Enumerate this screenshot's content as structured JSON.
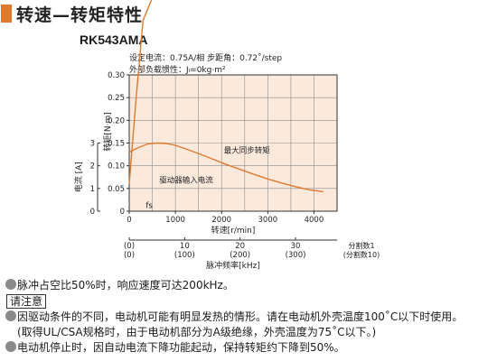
{
  "page": {
    "title": "转速—转矩特性",
    "model": "RK543AMA",
    "conditions": [
      "设定电流：0.75A/相  步距角：0.72˚/step",
      "外部负载惯性：Jₗ=0kg·m²"
    ],
    "colors": {
      "accent": "#e07a2e",
      "curve": "#e07a2e",
      "plot_bg": "#fbe9dc",
      "grid": "#8c8c8c"
    }
  },
  "chart_data": {
    "type": "line",
    "x": {
      "label": "转速[r/min]",
      "ticks": [
        0,
        1000,
        2000,
        3000,
        4000
      ],
      "range": [
        0,
        4500
      ]
    },
    "y_torque": {
      "label": "转矩[N·m]",
      "ticks": [
        "0",
        "0.05",
        "0.10",
        "0.15",
        "0.20",
        "0.25",
        "0.30"
      ],
      "range": [
        0,
        0.3
      ]
    },
    "y_current": {
      "label": "电流 [A]",
      "ticks": [
        "0",
        "1",
        "2",
        "3"
      ],
      "range": [
        0,
        3
      ]
    },
    "x2": {
      "label": "脉冲频率[kHz]",
      "ticks": [
        {
          "top": "(0)",
          "bottom": "(0)",
          "speed": 0
        },
        {
          "top": "10",
          "bottom": "(100)",
          "speed": 1200
        },
        {
          "top": "20",
          "bottom": "(200)",
          "speed": 2400
        },
        {
          "top": "30",
          "bottom": "(300)",
          "speed": 3600
        }
      ],
      "division_top": "分割数1",
      "division_bottom": "(分割数10)"
    },
    "series": [
      {
        "name": "最大同步转矩",
        "points": [
          [
            0,
            0.13
          ],
          [
            200,
            0.14
          ],
          [
            400,
            0.148
          ],
          [
            600,
            0.15
          ],
          [
            800,
            0.149
          ],
          [
            1000,
            0.145
          ],
          [
            1200,
            0.138
          ],
          [
            1500,
            0.127
          ],
          [
            1800,
            0.115
          ],
          [
            2100,
            0.103
          ],
          [
            2400,
            0.092
          ],
          [
            2700,
            0.081
          ],
          [
            3000,
            0.071
          ],
          [
            3300,
            0.062
          ],
          [
            3600,
            0.054
          ],
          [
            3900,
            0.047
          ],
          [
            4200,
            0.043
          ]
        ]
      },
      {
        "name": "驱动器输入电流",
        "axis": "current",
        "points": [
          [
            0,
            0.06
          ],
          [
            150,
            0.25
          ],
          [
            300,
            0.42
          ],
          [
            500,
            0.47
          ],
          [
            700,
            0.49
          ],
          [
            1000,
            0.5
          ],
          [
            1500,
            0.5
          ],
          [
            2000,
            0.5
          ],
          [
            2500,
            0.5
          ],
          [
            3000,
            0.5
          ],
          [
            3500,
            0.5
          ],
          [
            4000,
            0.5
          ],
          [
            4200,
            0.5
          ]
        ]
      }
    ],
    "annotations": {
      "fs": "fs"
    }
  },
  "notes": {
    "line1": "脉冲占空比50%时，响应速度可达200kHz。",
    "caution": "请注意",
    "line2": "因驱动条件的不同，电动机可能有明显发热的情形。请在电动机外壳温度100˚C以下时使用。",
    "line3": "(取得UL/CSA规格时，由于电动机部分为A级绝缘，外壳温度为75˚C以下。)",
    "line4": "电动机停止时，因自动电流下降功能起动，保持转矩约下降到50%。"
  }
}
